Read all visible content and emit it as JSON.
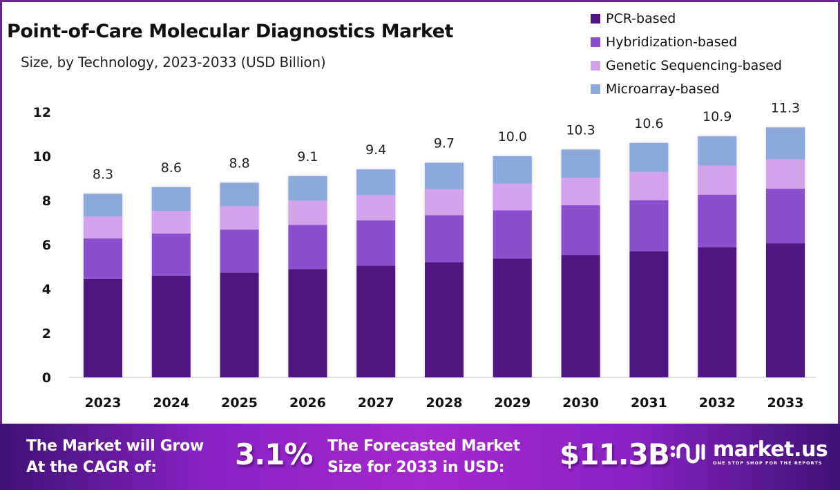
{
  "header": {
    "title": "Point-of-Care Molecular Diagnostics Market",
    "subtitle": "Size, by Technology, 2023-2033 (USD Billion)"
  },
  "legend": [
    {
      "label": "PCR-based",
      "color": "#4f1580"
    },
    {
      "label": "Hybridization-based",
      "color": "#8a4fcc"
    },
    {
      "label": "Genetic Sequencing-based",
      "color": "#d0a3ea"
    },
    {
      "label": "Microarray-based",
      "color": "#8da8db"
    }
  ],
  "chart_data": {
    "type": "bar",
    "stacked": true,
    "title": "Point-of-Care Molecular Diagnostics Market",
    "subtitle": "Size, by Technology, 2023-2033 (USD Billion)",
    "xlabel": "",
    "ylabel": "",
    "ylim": [
      0,
      12
    ],
    "yticks": [
      0,
      2,
      4,
      6,
      8,
      10,
      12
    ],
    "grid": false,
    "legend_position": "top-right",
    "categories": [
      "2023",
      "2024",
      "2025",
      "2026",
      "2027",
      "2028",
      "2029",
      "2030",
      "2031",
      "2032",
      "2033"
    ],
    "totals": [
      8.3,
      8.6,
      8.8,
      9.1,
      9.4,
      9.7,
      10.0,
      10.3,
      10.6,
      10.9,
      11.3
    ],
    "total_labels": [
      "8.3",
      "8.6",
      "8.8",
      "9.1",
      "9.4",
      "9.7",
      "10.0",
      "10.3",
      "10.6",
      "10.9",
      "11.3"
    ],
    "series": [
      {
        "name": "PCR-based",
        "color": "#4f1580",
        "values": [
          4.44,
          4.6,
          4.73,
          4.89,
          5.05,
          5.21,
          5.37,
          5.53,
          5.7,
          5.88,
          6.06
        ]
      },
      {
        "name": "Hybridization-based",
        "color": "#8a4fcc",
        "values": [
          1.84,
          1.9,
          1.95,
          2.0,
          2.05,
          2.12,
          2.18,
          2.25,
          2.31,
          2.38,
          2.47
        ]
      },
      {
        "name": "Genetic Sequencing-based",
        "color": "#d0a3ea",
        "values": [
          1.0,
          1.03,
          1.06,
          1.1,
          1.14,
          1.18,
          1.21,
          1.25,
          1.28,
          1.31,
          1.34
        ]
      },
      {
        "name": "Microarray-based",
        "color": "#8da8db",
        "values": [
          1.02,
          1.07,
          1.06,
          1.11,
          1.16,
          1.19,
          1.24,
          1.27,
          1.31,
          1.33,
          1.43
        ]
      }
    ]
  },
  "footer": {
    "cagr_text_line1": "The Market will Grow",
    "cagr_text_line2": "At the CAGR of:",
    "cagr_value": "3.1%",
    "forecast_text_line1": "The Forecasted Market",
    "forecast_text_line2": "Size for 2033 in USD:",
    "forecast_value": "$11.3B",
    "brand_name": "market.us",
    "brand_tagline": "ONE STOP SHOP FOR THE REPORTS"
  }
}
